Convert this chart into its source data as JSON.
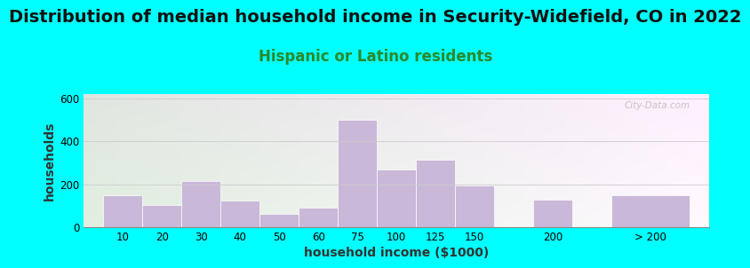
{
  "title": "Distribution of median household income in Security-Widefield, CO in 2022",
  "subtitle": "Hispanic or Latino residents",
  "xlabel": "household income ($1000)",
  "ylabel": "households",
  "bg_outer": "#00FFFF",
  "bar_color": "#C9B8D8",
  "categories": [
    "10",
    "20",
    "30",
    "40",
    "50",
    "60",
    "75",
    "100",
    "125",
    "150",
    "200",
    "> 200"
  ],
  "values": [
    150,
    105,
    215,
    125,
    60,
    90,
    500,
    270,
    315,
    195,
    130,
    150
  ],
  "bar_positions": [
    0,
    1,
    2,
    3,
    4,
    5,
    6,
    7,
    8,
    9,
    11,
    13
  ],
  "bar_widths": [
    1,
    1,
    1,
    1,
    1,
    1,
    1,
    1,
    1,
    1,
    1,
    2
  ],
  "ylim_max": 620,
  "yticks": [
    0,
    200,
    400,
    600
  ],
  "title_fontsize": 14,
  "subtitle_fontsize": 12,
  "subtitle_color": "#2a8a2a",
  "axis_label_fontsize": 10,
  "tick_fontsize": 8.5,
  "watermark": "City-Data.com"
}
